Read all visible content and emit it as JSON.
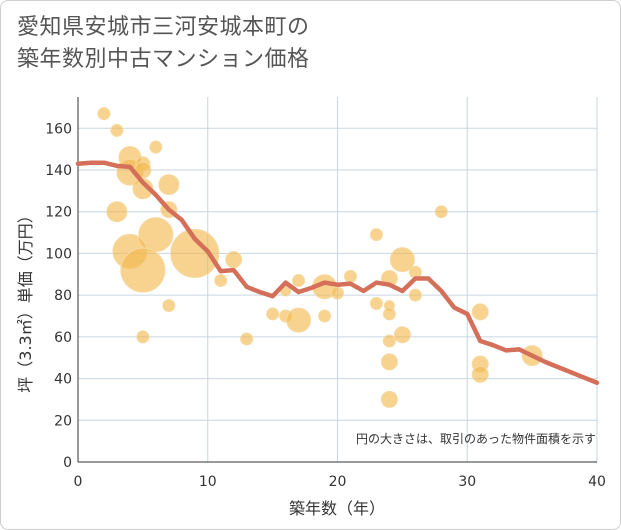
{
  "title": {
    "line1": "愛知県安城市三河安城本町の",
    "line2": "築年数別中古マンション価格"
  },
  "colors": {
    "bubble": "#f2b84b",
    "line": "#d4705a",
    "grid": "#c8d6e0"
  },
  "chart_data": {
    "type": "scatter",
    "xlabel": "築年数（年）",
    "ylabel": "坪（3.3㎡）単価（万円）",
    "note": "円の大きさは、取引のあった物件面積を示す",
    "xlim": [
      0,
      40
    ],
    "ylim": [
      0,
      175
    ],
    "xticks": [
      0,
      10,
      20,
      30,
      40
    ],
    "yticks": [
      0,
      20,
      40,
      60,
      80,
      100,
      120,
      140,
      160
    ],
    "grid": true,
    "points": [
      {
        "x": 2,
        "y": 167,
        "s": 6
      },
      {
        "x": 3,
        "y": 159,
        "s": 6
      },
      {
        "x": 4,
        "y": 146,
        "s": 11
      },
      {
        "x": 4,
        "y": 139,
        "s": 13
      },
      {
        "x": 5,
        "y": 143,
        "s": 7
      },
      {
        "x": 5,
        "y": 140,
        "s": 8
      },
      {
        "x": 5,
        "y": 131,
        "s": 10
      },
      {
        "x": 6,
        "y": 151,
        "s": 6
      },
      {
        "x": 7,
        "y": 133,
        "s": 10
      },
      {
        "x": 7,
        "y": 121,
        "s": 8
      },
      {
        "x": 3,
        "y": 120,
        "s": 10
      },
      {
        "x": 6,
        "y": 109,
        "s": 17
      },
      {
        "x": 4,
        "y": 101,
        "s": 17
      },
      {
        "x": 5,
        "y": 92,
        "s": 22
      },
      {
        "x": 9,
        "y": 100,
        "s": 24
      },
      {
        "x": 12,
        "y": 97,
        "s": 8
      },
      {
        "x": 11,
        "y": 87,
        "s": 6
      },
      {
        "x": 7,
        "y": 75,
        "s": 6
      },
      {
        "x": 5,
        "y": 60,
        "s": 6
      },
      {
        "x": 13,
        "y": 59,
        "s": 6
      },
      {
        "x": 15,
        "y": 71,
        "s": 6
      },
      {
        "x": 16,
        "y": 70,
        "s": 6
      },
      {
        "x": 16,
        "y": 82,
        "s": 5
      },
      {
        "x": 17,
        "y": 87,
        "s": 6
      },
      {
        "x": 17,
        "y": 68,
        "s": 12
      },
      {
        "x": 19,
        "y": 84,
        "s": 12
      },
      {
        "x": 19,
        "y": 70,
        "s": 6
      },
      {
        "x": 20,
        "y": 81,
        "s": 6
      },
      {
        "x": 21,
        "y": 89,
        "s": 6
      },
      {
        "x": 23,
        "y": 109,
        "s": 6
      },
      {
        "x": 23,
        "y": 76,
        "s": 6
      },
      {
        "x": 24,
        "y": 88,
        "s": 8
      },
      {
        "x": 24,
        "y": 75,
        "s": 5
      },
      {
        "x": 24,
        "y": 71,
        "s": 6
      },
      {
        "x": 24,
        "y": 58,
        "s": 6
      },
      {
        "x": 24,
        "y": 48,
        "s": 8
      },
      {
        "x": 24,
        "y": 30,
        "s": 8
      },
      {
        "x": 25,
        "y": 97,
        "s": 12
      },
      {
        "x": 25,
        "y": 61,
        "s": 8
      },
      {
        "x": 26,
        "y": 91,
        "s": 6
      },
      {
        "x": 26,
        "y": 80,
        "s": 6
      },
      {
        "x": 28,
        "y": 120,
        "s": 6
      },
      {
        "x": 31,
        "y": 72,
        "s": 8
      },
      {
        "x": 31,
        "y": 47,
        "s": 8
      },
      {
        "x": 31,
        "y": 42,
        "s": 8
      },
      {
        "x": 35,
        "y": 51,
        "s": 10
      }
    ],
    "series": [
      {
        "x": [
          0,
          1,
          2,
          3,
          4,
          5,
          6,
          7,
          8,
          9,
          10,
          11,
          12,
          13,
          14,
          15,
          16,
          17,
          18,
          19,
          20,
          21,
          22,
          23,
          24,
          25,
          26,
          27,
          28,
          29,
          30,
          31,
          32,
          33,
          34,
          35,
          36,
          37,
          38,
          39,
          40
        ],
        "values": [
          143,
          143.5,
          143.5,
          142,
          141.5,
          134,
          128,
          121,
          116,
          107,
          101,
          91.5,
          92,
          84,
          81.5,
          79.5,
          86,
          81.5,
          83.5,
          86,
          85,
          85.5,
          82,
          86,
          85,
          82,
          88,
          88,
          82,
          74,
          71,
          58,
          56,
          53.5,
          54,
          51,
          48,
          45.5,
          43,
          40.5,
          38
        ]
      }
    ]
  }
}
